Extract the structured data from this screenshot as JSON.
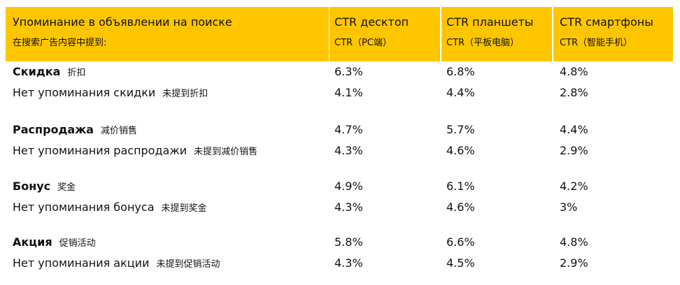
{
  "header": [
    {
      "ru": "Упоминание в объявлении на поиске",
      "zh": "在搜索广告内容中提到:"
    },
    {
      "ru": "CTR десктоп",
      "zh": "CTR（PC端）"
    },
    {
      "ru": "CTR планшеты",
      "zh": "CTR（平板电脑）"
    },
    {
      "ru": "CTR смартфоны",
      "zh": "CTR（智能手机）"
    }
  ],
  "groups": [
    {
      "rows": [
        {
          "label": "Скидка",
          "label_zh": "折扣",
          "values": [
            "6.3%",
            "6.8%",
            "4.8%"
          ]
        },
        {
          "label": "Нет упоминания скидки",
          "label_zh": "未提到折扣",
          "values": [
            "4.1%",
            "4.4%",
            "2.8%"
          ]
        }
      ]
    },
    {
      "rows": [
        {
          "label": "Распродажа",
          "label_zh": "减价销售",
          "values": [
            "4.7%",
            "5.7%",
            "4.4%"
          ]
        },
        {
          "label": "Нет упоминания распродажи",
          "label_zh": "未提到减价销售",
          "values": [
            "4.3%",
            "4.6%",
            "2.9%"
          ]
        }
      ]
    },
    {
      "rows": [
        {
          "label": "Бонус",
          "label_zh": "奖金",
          "values": [
            "4.9%",
            "6.1%",
            "4.2%"
          ]
        },
        {
          "label": "Нет упоминания бонуса",
          "label_zh": "未提到奖金",
          "values": [
            "4.3%",
            "4.6%",
            "3%"
          ]
        }
      ]
    },
    {
      "rows": [
        {
          "label": "Акция",
          "label_zh": "促销活动",
          "values": [
            "5.8%",
            "6.6%",
            "4.8%"
          ]
        },
        {
          "label": "Нет упоминания акции",
          "label_zh": "未提到促销活动",
          "values": [
            "4.3%",
            "4.5%",
            "2.9%"
          ]
        }
      ]
    }
  ]
}
